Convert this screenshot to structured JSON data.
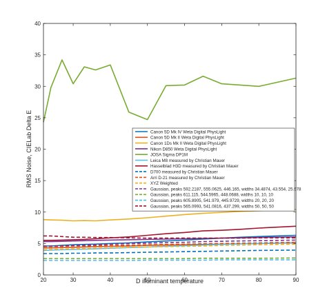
{
  "chart_data": {
    "type": "line",
    "title": "",
    "xlabel": "D illuminant temperature",
    "ylabel": "RMS Noise, CIELab Delta E",
    "xlim": [
      22,
      90
    ],
    "ylim": [
      0,
      40
    ],
    "xticks": [
      20,
      30,
      40,
      50,
      60,
      70,
      80,
      90
    ],
    "yticks": [
      0,
      5,
      10,
      15,
      20,
      25,
      30,
      35,
      40
    ],
    "grid": false,
    "legend_position": "center-right",
    "x": [
      22,
      24,
      27,
      30,
      33,
      36,
      40,
      45,
      50,
      55,
      60,
      65,
      70,
      75,
      80,
      90
    ],
    "series": [
      {
        "name": "Canon 5D Mk IV Weta Digital PhysLight",
        "color": "#0072BD",
        "dash": "solid",
        "values": [
          4.6,
          4.6,
          4.7,
          4.8,
          4.85,
          4.9,
          5.0,
          5.1,
          5.25,
          5.4,
          5.55,
          5.7,
          5.85,
          6.0,
          6.1,
          6.3
        ]
      },
      {
        "name": "Canon 5D Mk II Weta Digital PhysLight",
        "color": "#D95319",
        "dash": "solid",
        "values": [
          4.3,
          4.3,
          4.35,
          4.4,
          4.45,
          4.5,
          4.55,
          4.6,
          4.7,
          4.75,
          4.8,
          4.85,
          4.9,
          4.95,
          5.0,
          5.1
        ]
      },
      {
        "name": "Canon 1Ds Mk II Weta Digital PhysLight",
        "color": "#EDB120",
        "dash": "solid",
        "values": [
          8.8,
          8.75,
          8.7,
          8.6,
          8.65,
          8.6,
          8.75,
          8.9,
          9.1,
          9.35,
          9.6,
          9.8,
          9.95,
          10.1,
          10.2,
          10.4
        ]
      },
      {
        "name": "Nikon D850 Weta Digital PhysLight",
        "color": "#7E2F8E",
        "dash": "solid",
        "values": [
          5.3,
          5.3,
          5.35,
          5.4,
          5.45,
          5.5,
          5.55,
          5.6,
          5.65,
          5.7,
          5.75,
          5.8,
          5.85,
          5.9,
          5.95,
          6.05
        ]
      },
      {
        "name": "JOSA Sigma DP1M",
        "color": "#77AC30",
        "dash": "solid",
        "values": [
          24.3,
          29.8,
          34.2,
          30.4,
          33.1,
          32.6,
          33.4,
          25.9,
          24.7,
          30.1,
          30.2,
          31.6,
          30.4,
          30.2,
          30.0,
          31.3
        ]
      },
      {
        "name": "Leica M8 measured by Christian Mauer",
        "color": "#4DBEEE",
        "dash": "solid",
        "values": [
          3.9,
          3.95,
          4.0,
          4.05,
          4.1,
          4.15,
          4.25,
          4.35,
          4.45,
          4.55,
          4.65,
          4.75,
          4.85,
          4.95,
          5.0,
          5.15
        ]
      },
      {
        "name": "Hasselblad H3D measured by Christian Mauer",
        "color": "#A2142F",
        "dash": "solid",
        "values": [
          5.5,
          5.5,
          5.55,
          5.6,
          5.65,
          5.75,
          5.9,
          6.05,
          6.3,
          6.55,
          6.75,
          7.0,
          7.1,
          7.25,
          7.45,
          7.75
        ]
      },
      {
        "name": "D700 measured by Christian Mauer",
        "color": "#0072BD",
        "dash": "dashed",
        "values": [
          3.4,
          3.4,
          3.4,
          3.45,
          3.45,
          3.5,
          3.5,
          3.55,
          3.6,
          3.65,
          3.7,
          3.75,
          3.8,
          3.85,
          3.9,
          3.95
        ]
      },
      {
        "name": "Arri D-21 measured by Christian Mauer",
        "color": "#D95319",
        "dash": "dashed",
        "values": [
          4.5,
          4.5,
          4.55,
          4.6,
          4.6,
          4.65,
          4.7,
          4.75,
          4.8,
          4.85,
          4.9,
          4.95,
          5.0,
          5.05,
          5.1,
          5.2
        ]
      },
      {
        "name": "XYZ Weighted",
        "color": "#EDB120",
        "dash": "dashed",
        "values": [
          4.0,
          4.05,
          4.1,
          4.15,
          4.2,
          4.25,
          4.3,
          4.4,
          4.45,
          4.5,
          4.55,
          4.6,
          4.7,
          4.75,
          4.8,
          4.9
        ]
      },
      {
        "name": "Gaussian, peaks 592.2187, 555.0625, 446.165, widths 34.4874, 43.554, 25.678",
        "color": "#7E2F8E",
        "dash": "dashed",
        "values": [
          4.6,
          4.6,
          4.65,
          4.7,
          4.75,
          4.8,
          4.9,
          5.0,
          5.05,
          5.15,
          5.2,
          5.3,
          5.35,
          5.4,
          5.45,
          5.55
        ]
      },
      {
        "name": "Gaussian, peaks 611.115, 544.5965, 448.0688, widths 10, 10, 10",
        "color": "#77AC30",
        "dash": "dashed",
        "values": [
          2.6,
          2.6,
          2.6,
          2.6,
          2.6,
          2.6,
          2.6,
          2.6,
          2.6,
          2.6,
          2.6,
          2.65,
          2.65,
          2.65,
          2.65,
          2.7
        ]
      },
      {
        "name": "Gaussian, peaks 605.8905, 541.979, 445.9729, widths 20, 20, 20",
        "color": "#4DBEEE",
        "dash": "dashed",
        "values": [
          2.3,
          2.3,
          2.3,
          2.3,
          2.3,
          2.3,
          2.3,
          2.3,
          2.35,
          2.35,
          2.35,
          2.35,
          2.4,
          2.4,
          2.4,
          2.4
        ]
      },
      {
        "name": "Gaussian, peaks 565.0993, 541.0816, 437.299, widths 50, 50, 50",
        "color": "#A2142F",
        "dash": "dashed",
        "values": [
          6.2,
          6.2,
          6.1,
          6.0,
          6.0,
          5.95,
          5.95,
          5.9,
          5.85,
          5.85,
          5.85,
          5.85,
          5.85,
          5.85,
          5.9,
          5.9
        ]
      }
    ]
  }
}
